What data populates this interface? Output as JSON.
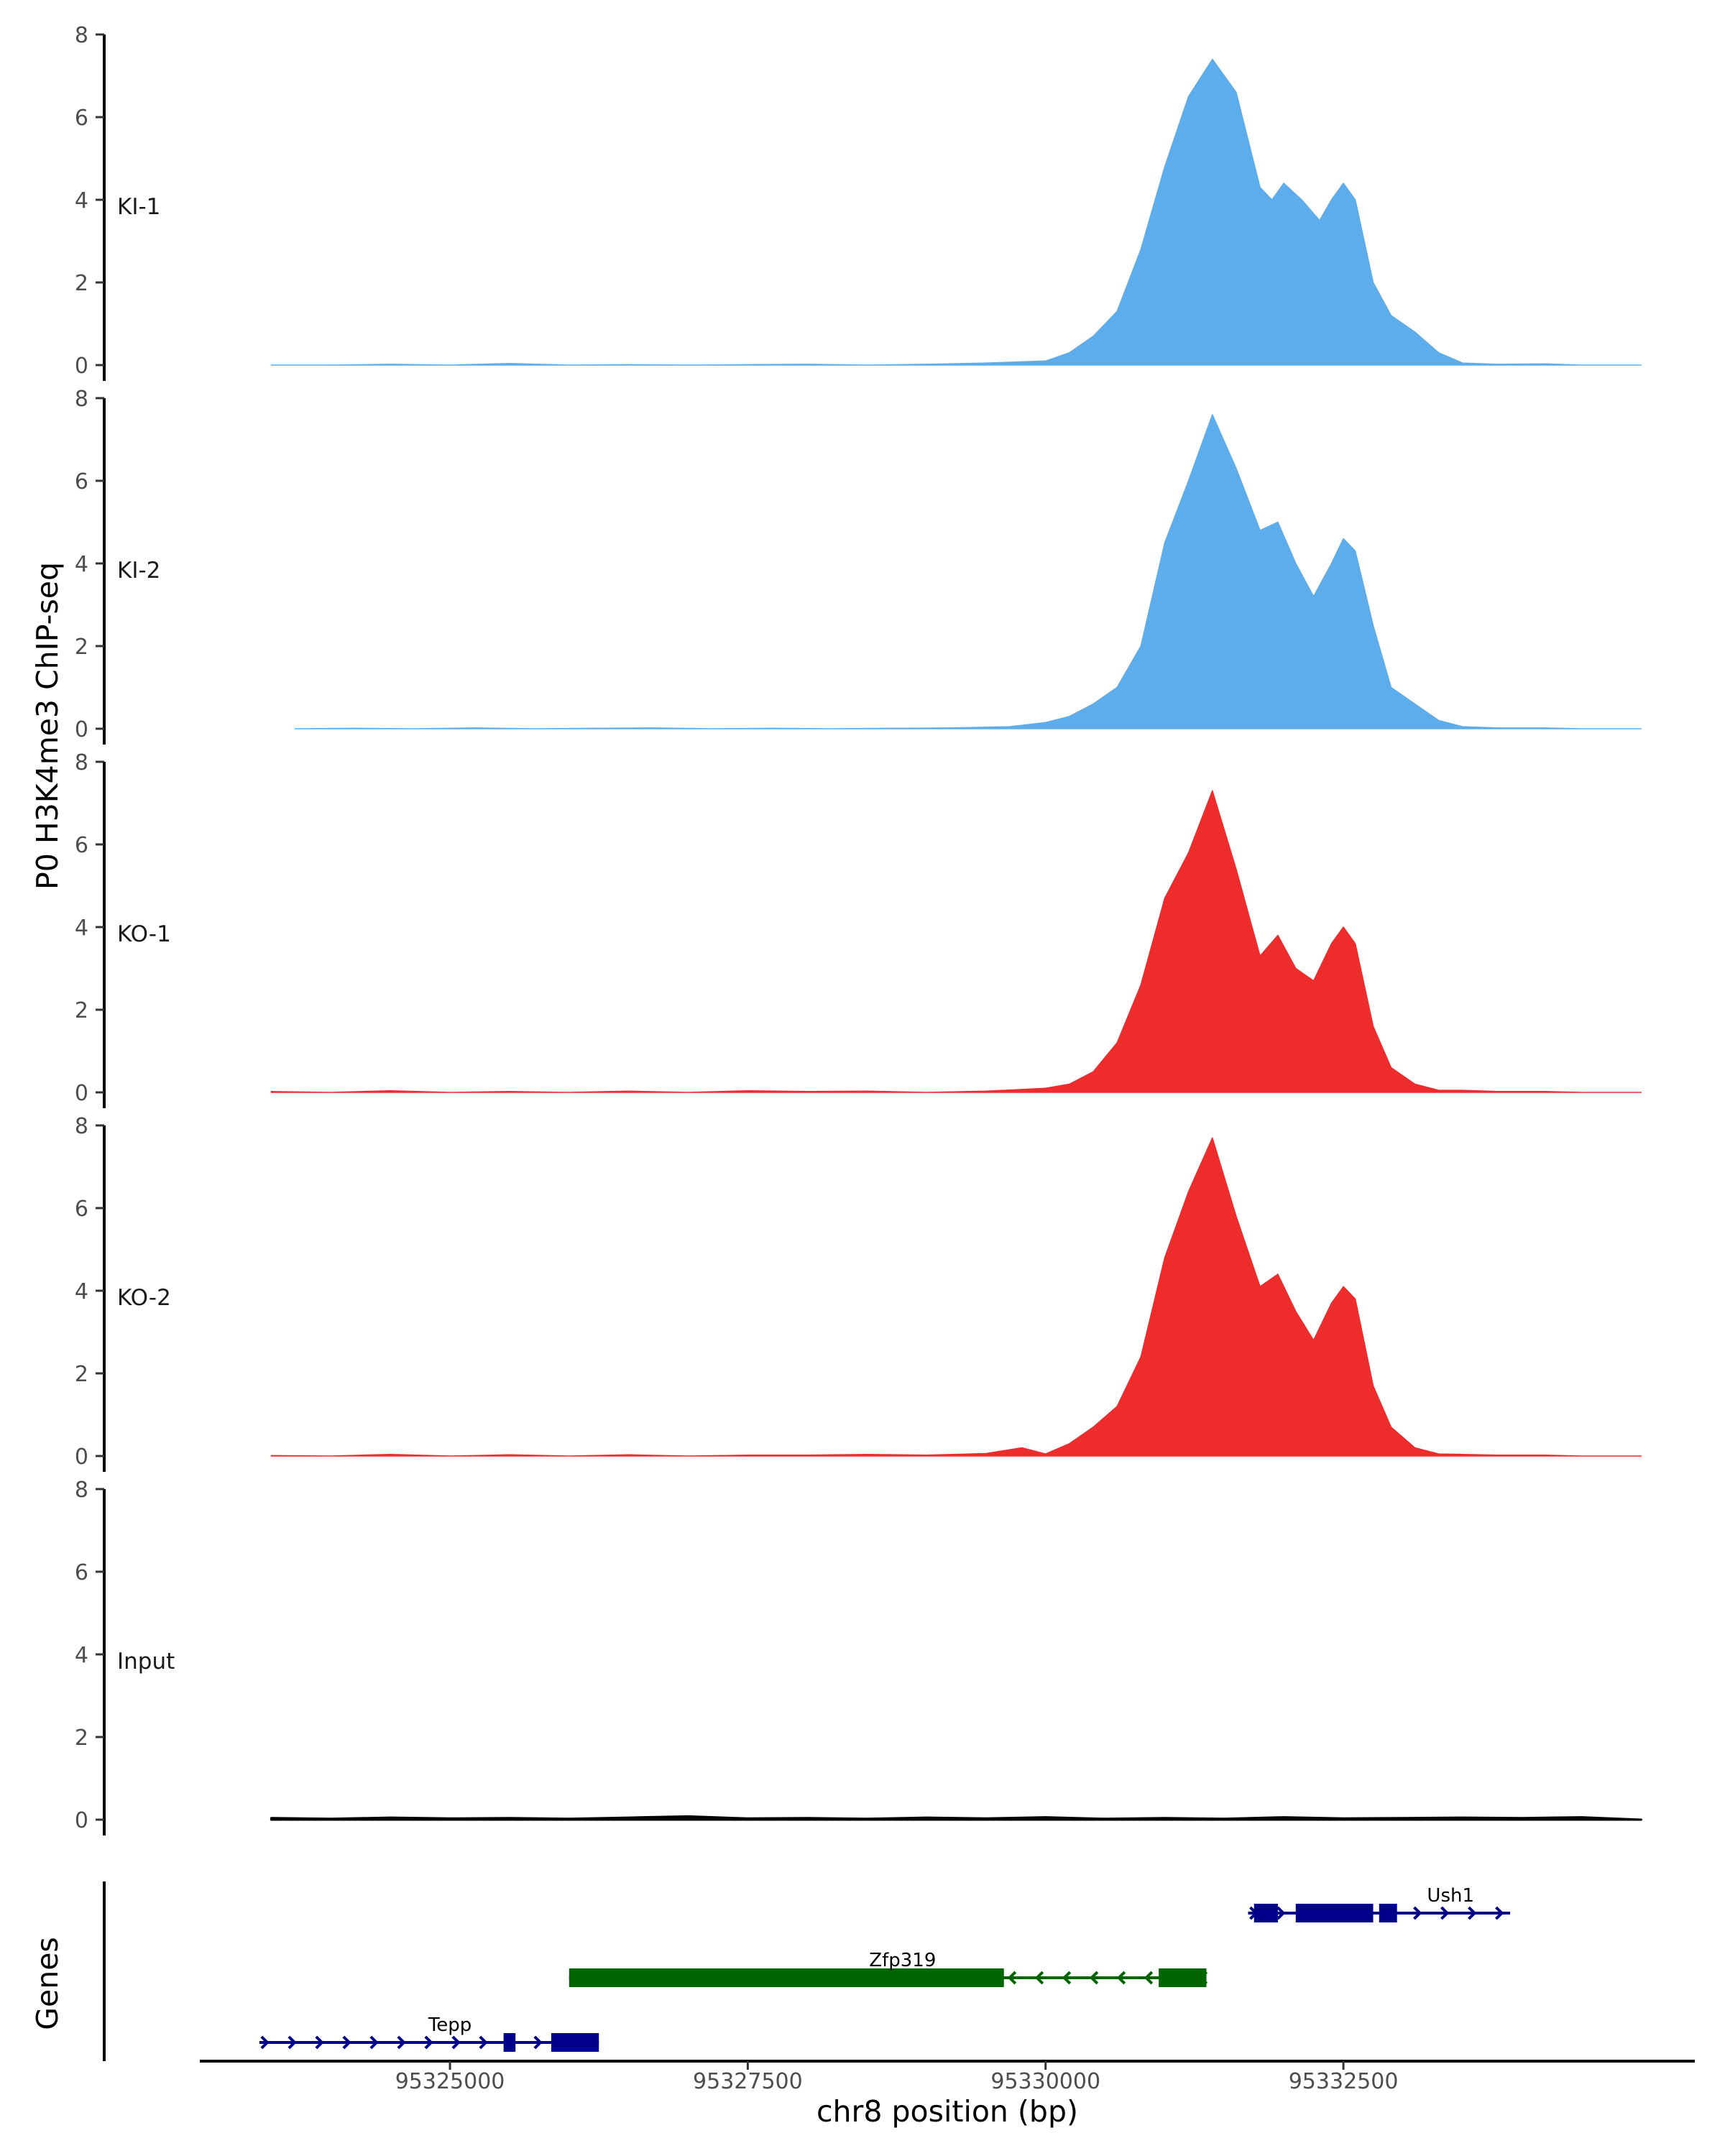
{
  "chart_data": {
    "type": "area",
    "ylabel": "P0 H3K4me3 ChIP-seq",
    "xlabel": "chr8 position (bp)",
    "genes_label": "Genes",
    "xlim": [
      95322900,
      95335450
    ],
    "ylim": [
      0,
      8
    ],
    "y_ticks": [
      0,
      2,
      4,
      6,
      8
    ],
    "x_ticks": [
      95325000,
      95327500,
      95330000,
      95332500
    ],
    "tracks": [
      {
        "name": "KI-1",
        "color": "#5DADEC",
        "positions": [
          95323500,
          95324000,
          95324500,
          95325000,
          95325500,
          95326000,
          95326500,
          95327000,
          95327500,
          95328000,
          95328500,
          95329000,
          95329500,
          95330000,
          95330200,
          95330400,
          95330600,
          95330800,
          95331000,
          95331200,
          95331400,
          95331600,
          95331800,
          95331900,
          95332000,
          95332150,
          95332300,
          95332400,
          95332500,
          95332600,
          95332750,
          95332900,
          95333100,
          95333300,
          95333500,
          95333800,
          95334200,
          95334500,
          95335000
        ],
        "values": [
          0.0,
          0.0,
          0.02,
          0.0,
          0.04,
          0.0,
          0.01,
          0.0,
          0.01,
          0.02,
          0.0,
          0.02,
          0.05,
          0.1,
          0.3,
          0.7,
          1.3,
          2.8,
          4.8,
          6.5,
          7.4,
          6.6,
          4.3,
          4.0,
          4.4,
          4.0,
          3.5,
          4.0,
          4.4,
          4.0,
          2.0,
          1.2,
          0.8,
          0.3,
          0.05,
          0.02,
          0.03,
          0.0,
          0.0
        ]
      },
      {
        "name": "KI-2",
        "color": "#5DADEC",
        "positions": [
          95323700,
          95324200,
          95324700,
          95325200,
          95325700,
          95326200,
          95326700,
          95327200,
          95327700,
          95328200,
          95328700,
          95329200,
          95329700,
          95330000,
          95330200,
          95330400,
          95330600,
          95330800,
          95331000,
          95331200,
          95331400,
          95331600,
          95331800,
          95331950,
          95332100,
          95332250,
          95332400,
          95332500,
          95332600,
          95332750,
          95332900,
          95333100,
          95333300,
          95333500,
          95333800,
          95334200,
          95334500,
          95335000
        ],
        "values": [
          0.0,
          0.01,
          0.0,
          0.02,
          0.0,
          0.01,
          0.02,
          0.0,
          0.01,
          0.0,
          0.01,
          0.02,
          0.05,
          0.15,
          0.3,
          0.6,
          1.0,
          2.0,
          4.5,
          6.0,
          7.6,
          6.3,
          4.8,
          5.0,
          4.0,
          3.2,
          4.0,
          4.6,
          4.3,
          2.5,
          1.0,
          0.6,
          0.2,
          0.05,
          0.02,
          0.02,
          0.0,
          0.0
        ]
      },
      {
        "name": "KO-1",
        "color": "#EE2C2C",
        "positions": [
          95323500,
          95324000,
          95324500,
          95325000,
          95325500,
          95326000,
          95326500,
          95327000,
          95327500,
          95328000,
          95328500,
          95329000,
          95329500,
          95330000,
          95330200,
          95330400,
          95330600,
          95330800,
          95331000,
          95331200,
          95331400,
          95331600,
          95331800,
          95331950,
          95332100,
          95332250,
          95332400,
          95332500,
          95332600,
          95332750,
          95332900,
          95333100,
          95333300,
          95333500,
          95333800,
          95334200,
          95334500,
          95335000
        ],
        "values": [
          0.02,
          0.0,
          0.04,
          0.0,
          0.02,
          0.0,
          0.03,
          0.0,
          0.04,
          0.02,
          0.03,
          0.0,
          0.03,
          0.1,
          0.2,
          0.5,
          1.2,
          2.6,
          4.7,
          5.8,
          7.3,
          5.4,
          3.3,
          3.8,
          3.0,
          2.7,
          3.6,
          4.0,
          3.6,
          1.6,
          0.6,
          0.2,
          0.05,
          0.05,
          0.02,
          0.02,
          0.0,
          0.0
        ]
      },
      {
        "name": "KO-2",
        "color": "#EE2C2C",
        "positions": [
          95323500,
          95324000,
          95324500,
          95325000,
          95325500,
          95326000,
          95326500,
          95327000,
          95327500,
          95328000,
          95328500,
          95329000,
          95329500,
          95329800,
          95330000,
          95330200,
          95330400,
          95330600,
          95330800,
          95331000,
          95331200,
          95331400,
          95331600,
          95331800,
          95331950,
          95332100,
          95332250,
          95332400,
          95332500,
          95332600,
          95332750,
          95332900,
          95333100,
          95333300,
          95333500,
          95333800,
          95334200,
          95334500,
          95335000
        ],
        "values": [
          0.01,
          0.0,
          0.04,
          0.0,
          0.03,
          0.0,
          0.03,
          0.0,
          0.02,
          0.02,
          0.04,
          0.02,
          0.06,
          0.2,
          0.05,
          0.3,
          0.7,
          1.2,
          2.4,
          4.8,
          6.4,
          7.7,
          5.8,
          4.1,
          4.4,
          3.5,
          2.8,
          3.7,
          4.1,
          3.8,
          1.7,
          0.7,
          0.2,
          0.05,
          0.04,
          0.02,
          0.02,
          0.0,
          0.0
        ]
      },
      {
        "name": "Input",
        "color": "#000000",
        "positions": [
          95323500,
          95324000,
          95324500,
          95325000,
          95325500,
          95326000,
          95326500,
          95327000,
          95327500,
          95328000,
          95328500,
          95329000,
          95329500,
          95330000,
          95330500,
          95331000,
          95331500,
          95332000,
          95332500,
          95333000,
          95333500,
          95334000,
          95334500,
          95335000
        ],
        "values": [
          0.04,
          0.02,
          0.05,
          0.03,
          0.04,
          0.02,
          0.05,
          0.08,
          0.03,
          0.04,
          0.02,
          0.05,
          0.03,
          0.06,
          0.02,
          0.04,
          0.02,
          0.06,
          0.03,
          0.04,
          0.05,
          0.04,
          0.06,
          0.0
        ]
      }
    ],
    "genes": [
      {
        "name": "Ush1",
        "color": "#00008B",
        "strand": "+",
        "start": 95331700,
        "end": 95333900,
        "exons": [
          [
            95331750,
            95331950
          ],
          [
            95332100,
            95332750
          ],
          [
            95332800,
            95332950
          ]
        ]
      },
      {
        "name": "Zfp319",
        "color": "#006400",
        "strand": "-",
        "start": 95326000,
        "end": 95331350,
        "exons": [
          [
            95326000,
            95329650
          ],
          [
            95330950,
            95331350
          ]
        ]
      },
      {
        "name": "Tepp",
        "color": "#00008B",
        "strand": "+",
        "start": 95323400,
        "end": 95326250,
        "exons": [
          [
            95325450,
            95325550
          ],
          [
            95325850,
            95326250
          ]
        ]
      }
    ]
  }
}
